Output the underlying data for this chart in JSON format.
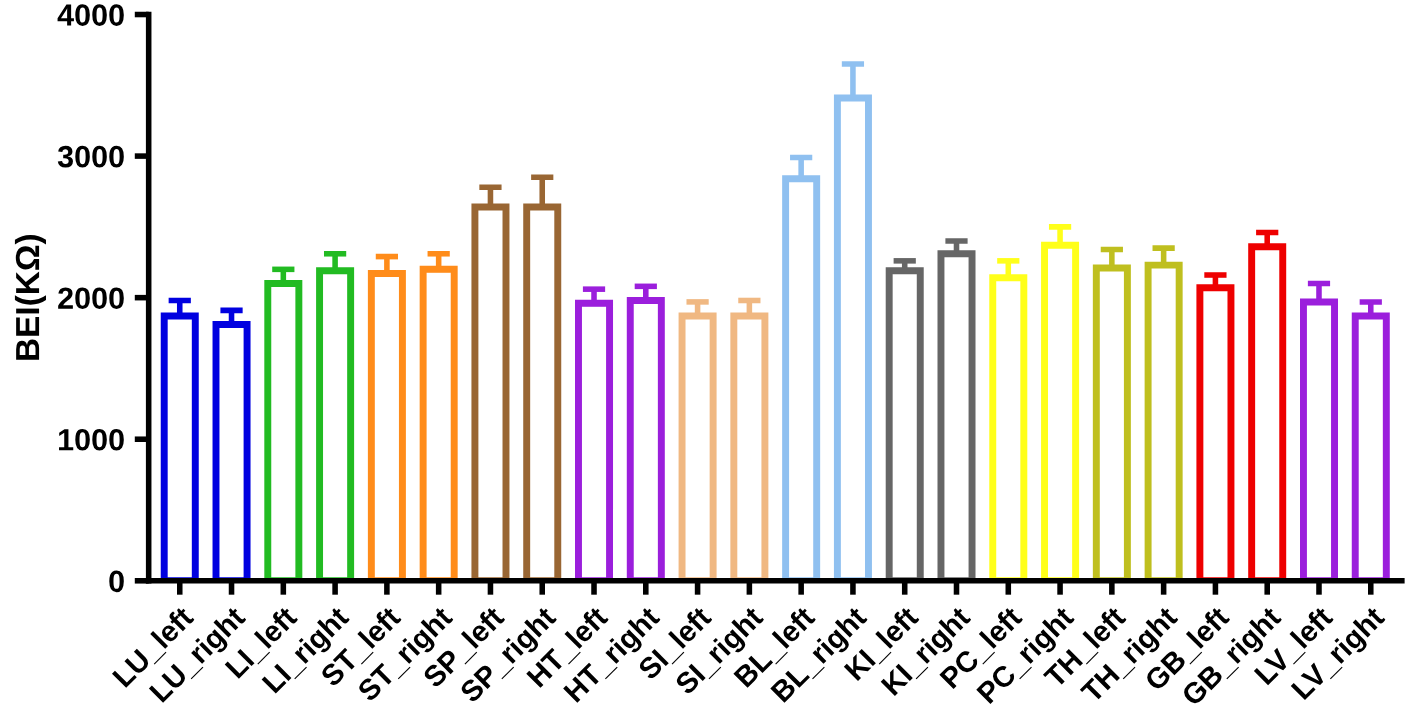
{
  "chart_data": {
    "type": "bar",
    "ylabel": "BEI(KΩ)",
    "categories": [
      "LU_left",
      "LU_right",
      "LI_left",
      "LI_right",
      "ST_left",
      "ST_right",
      "SP_left",
      "SP_right",
      "HT_left",
      "HT_right",
      "SI_left",
      "SI_right",
      "BL_left",
      "BL_right",
      "KI_left",
      "KI_right",
      "PC_left",
      "PC_right",
      "TH_left",
      "TH_right",
      "GB_left",
      "GB_right",
      "LV_left",
      "LV_right"
    ],
    "values": [
      1870,
      1810,
      2100,
      2190,
      2170,
      2200,
      2640,
      2640,
      1960,
      1980,
      1870,
      1870,
      2840,
      3410,
      2190,
      2310,
      2140,
      2370,
      2210,
      2230,
      2070,
      2360,
      1970,
      1870
    ],
    "errors": [
      [
        1870,
        1980
      ],
      [
        1810,
        1910
      ],
      [
        2100,
        2200
      ],
      [
        2190,
        2310
      ],
      [
        2170,
        2290
      ],
      [
        2200,
        2310
      ],
      [
        2640,
        2780
      ],
      [
        2640,
        2850
      ],
      [
        1960,
        2060
      ],
      [
        1980,
        2080
      ],
      [
        1870,
        1970
      ],
      [
        1870,
        1980
      ],
      [
        2840,
        2990
      ],
      [
        3410,
        3650
      ],
      [
        2190,
        2260
      ],
      [
        2310,
        2400
      ],
      [
        2140,
        2260
      ],
      [
        2370,
        2500
      ],
      [
        2210,
        2340
      ],
      [
        2230,
        2350
      ],
      [
        2070,
        2160
      ],
      [
        2360,
        2460
      ],
      [
        1970,
        2100
      ],
      [
        1870,
        1970
      ]
    ],
    "colors": [
      "#0000e0",
      "#0000e0",
      "#22bb22",
      "#22bb22",
      "#ff8c1a",
      "#ff8c1a",
      "#996633",
      "#996633",
      "#9b1fdc",
      "#9b1fdc",
      "#f0b882",
      "#f0b882",
      "#8fc0f0",
      "#8fc0f0",
      "#666666",
      "#666666",
      "#ffff1a",
      "#ffff1a",
      "#bfbf1f",
      "#bfbf1f",
      "#ee0000",
      "#ee0000",
      "#9b1fdc",
      "#9b1fdc"
    ],
    "ylim": [
      0,
      4000
    ],
    "yticks": [
      0,
      1000,
      2000,
      3000,
      4000
    ],
    "grid": false
  }
}
